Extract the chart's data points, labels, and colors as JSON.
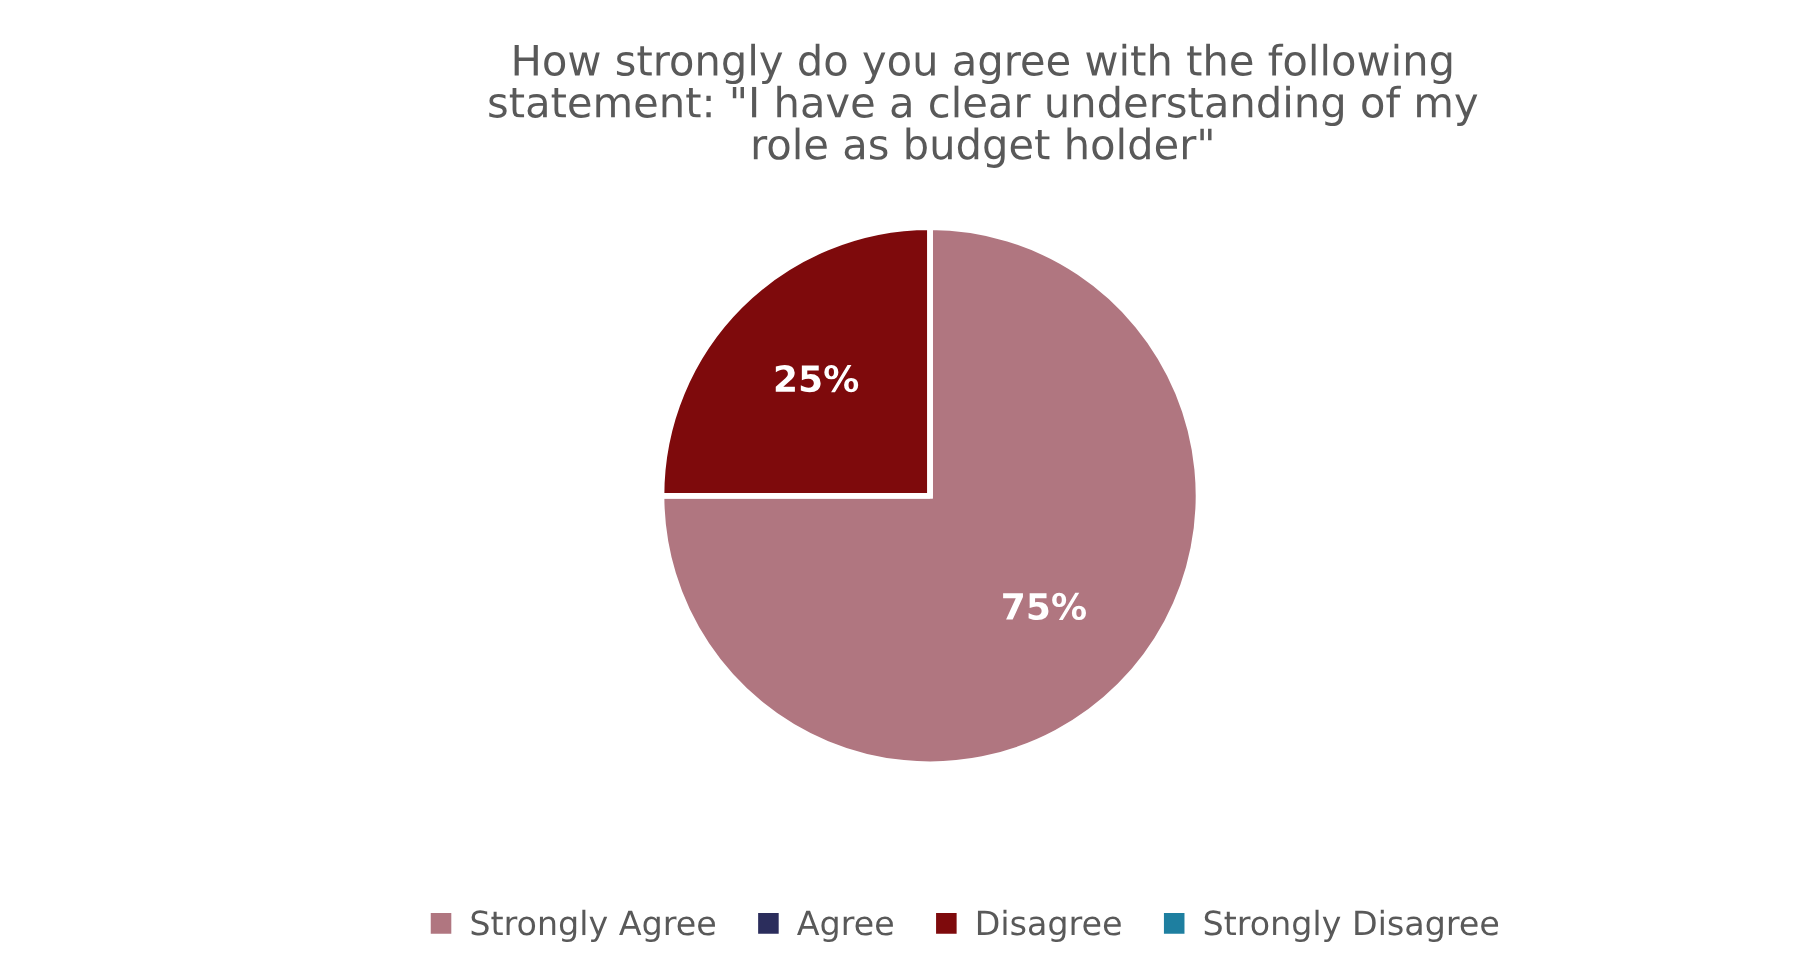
{
  "chart_data": {
    "type": "pie",
    "title": "How strongly do you agree with the following\nstatement: \"I have a clear understanding of my\nrole as budget holder\"",
    "categories": [
      "Strongly Agree",
      "Agree",
      "Disagree",
      "Strongly Disagree"
    ],
    "values": [
      75,
      0,
      25,
      0
    ],
    "colors": [
      "#b07680",
      "#2b2d5c",
      "#7e0a0c",
      "#1e7fa0"
    ],
    "value_labels": [
      "75%",
      null,
      "25%",
      null
    ],
    "legend": "bottom"
  }
}
